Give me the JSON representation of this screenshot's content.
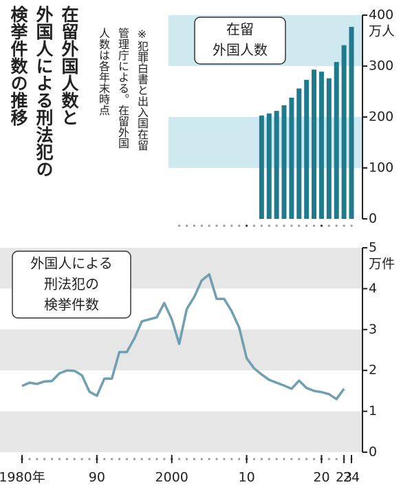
{
  "title_lines": [
    "在留外国人数と",
    "外国人による刑法犯の",
    "検挙件数の推移"
  ],
  "note_lines": [
    "※犯罪白書と出入国在留",
    "管理庁による。在留外国",
    "人数は各年末時点"
  ],
  "chart_data": [
    {
      "type": "bar",
      "legend_lines": [
        "在留",
        "外国人数"
      ],
      "unit": "万人",
      "x": [
        2012,
        2013,
        2014,
        2015,
        2016,
        2017,
        2018,
        2019,
        2020,
        2021,
        2022,
        2023,
        2024
      ],
      "values": [
        203,
        207,
        212,
        223,
        238,
        256,
        273,
        293,
        289,
        276,
        308,
        341,
        377
      ],
      "color": "#1f7a8c",
      "xlim": [
        1980,
        2024
      ],
      "ylim": [
        0,
        400
      ],
      "yticks": [
        0,
        100,
        200,
        300,
        400
      ],
      "bands": [
        [
          100,
          200
        ],
        [
          300,
          400
        ]
      ],
      "band_color": "#cfe9f1"
    },
    {
      "type": "line",
      "legend_lines": [
        "外国人による",
        "刑法犯の",
        "検挙件数"
      ],
      "unit": "万件",
      "x": [
        1980,
        1981,
        1982,
        1983,
        1984,
        1985,
        1986,
        1987,
        1988,
        1989,
        1990,
        1991,
        1992,
        1993,
        1994,
        1995,
        1996,
        1997,
        1998,
        1999,
        2000,
        2001,
        2002,
        2003,
        2004,
        2005,
        2006,
        2007,
        2008,
        2009,
        2010,
        2011,
        2012,
        2013,
        2014,
        2015,
        2016,
        2017,
        2018,
        2019,
        2020,
        2021,
        2022,
        2023
      ],
      "values": [
        1.62,
        1.7,
        1.67,
        1.73,
        1.74,
        1.93,
        2.0,
        1.99,
        1.88,
        1.48,
        1.38,
        1.8,
        1.8,
        2.45,
        2.45,
        2.78,
        3.2,
        3.25,
        3.3,
        3.65,
        3.25,
        2.65,
        3.5,
        3.8,
        4.2,
        4.35,
        3.75,
        3.75,
        3.45,
        3.05,
        2.3,
        2.05,
        1.9,
        1.77,
        1.7,
        1.63,
        1.55,
        1.75,
        1.57,
        1.5,
        1.47,
        1.42,
        1.3,
        1.55
      ],
      "color": "#6f9fb0",
      "xlim": [
        1980,
        2024
      ],
      "ylim": [
        0,
        5
      ],
      "yticks": [
        0,
        1,
        2,
        3,
        4,
        5
      ],
      "xticks": [
        {
          "value": 1980,
          "label": "1980年"
        },
        {
          "value": 1990,
          "label": "90"
        },
        2000,
        {
          "value": 2010,
          "label": "10"
        },
        {
          "value": 2020,
          "label": "20"
        },
        {
          "value": 2023,
          "label": "23"
        },
        {
          "value": 2024,
          "label": "24"
        }
      ],
      "bands": [
        [
          0,
          1
        ],
        [
          2,
          3
        ],
        [
          4,
          5
        ]
      ],
      "band_color": "#e6e6e6"
    }
  ]
}
